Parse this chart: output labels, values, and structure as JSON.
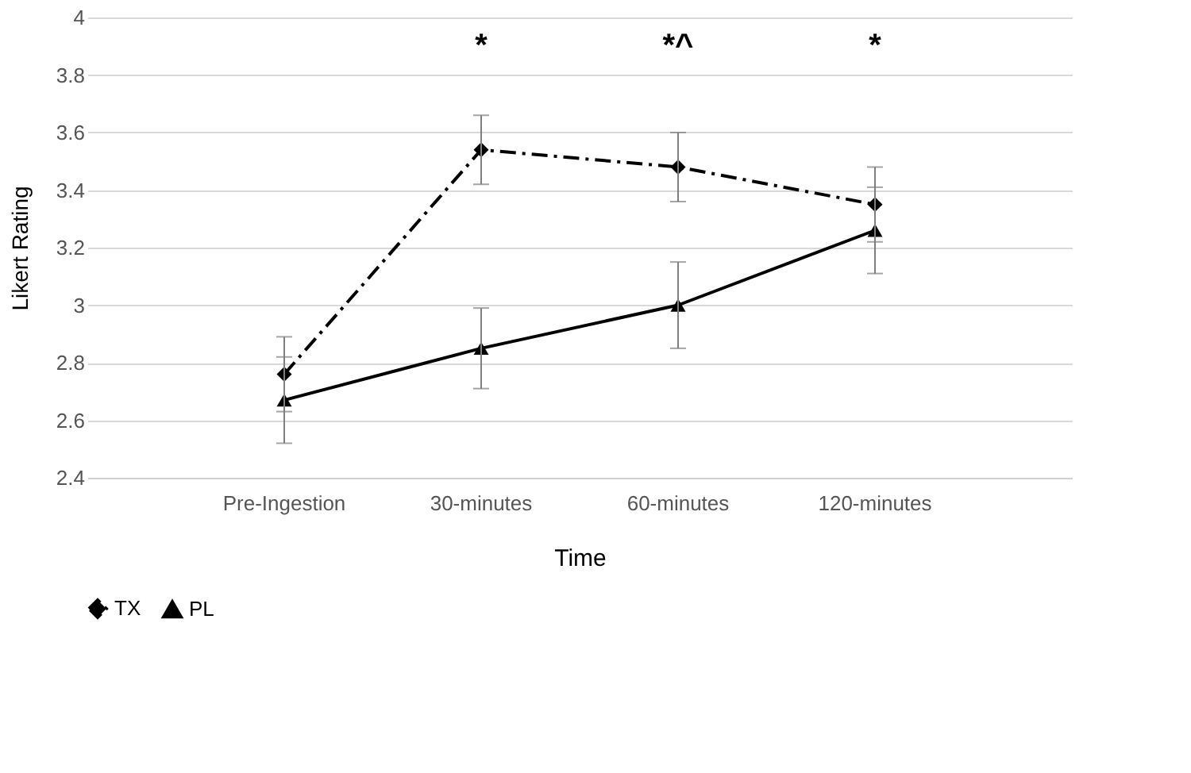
{
  "chart_data": {
    "type": "line",
    "xlabel": "Time",
    "ylabel": "Likert Rating",
    "categories": [
      "Pre-Ingestion",
      "30-minutes",
      "60-minutes",
      "120-minutes"
    ],
    "series": [
      {
        "name": "TX",
        "color": "#000000",
        "values": [
          2.76,
          3.54,
          3.48,
          3.35
        ],
        "errors": [
          0.13,
          0.12,
          0.12,
          0.13
        ],
        "marker": "diamond",
        "line_style": "dashed"
      },
      {
        "name": "PL",
        "color": "#000000",
        "values": [
          2.67,
          2.85,
          3.0,
          3.26
        ],
        "errors": [
          0.15,
          0.14,
          0.15,
          0.15
        ],
        "marker": "triangle",
        "line_style": "solid"
      }
    ],
    "ylim": [
      2.4,
      4
    ],
    "yticks": [
      2.4,
      2.6,
      2.8,
      3,
      3.2,
      3.4,
      3.6,
      3.8,
      4
    ],
    "grid": "y",
    "legend": "bottom",
    "annotations": [
      "*",
      "*^",
      "*"
    ]
  }
}
